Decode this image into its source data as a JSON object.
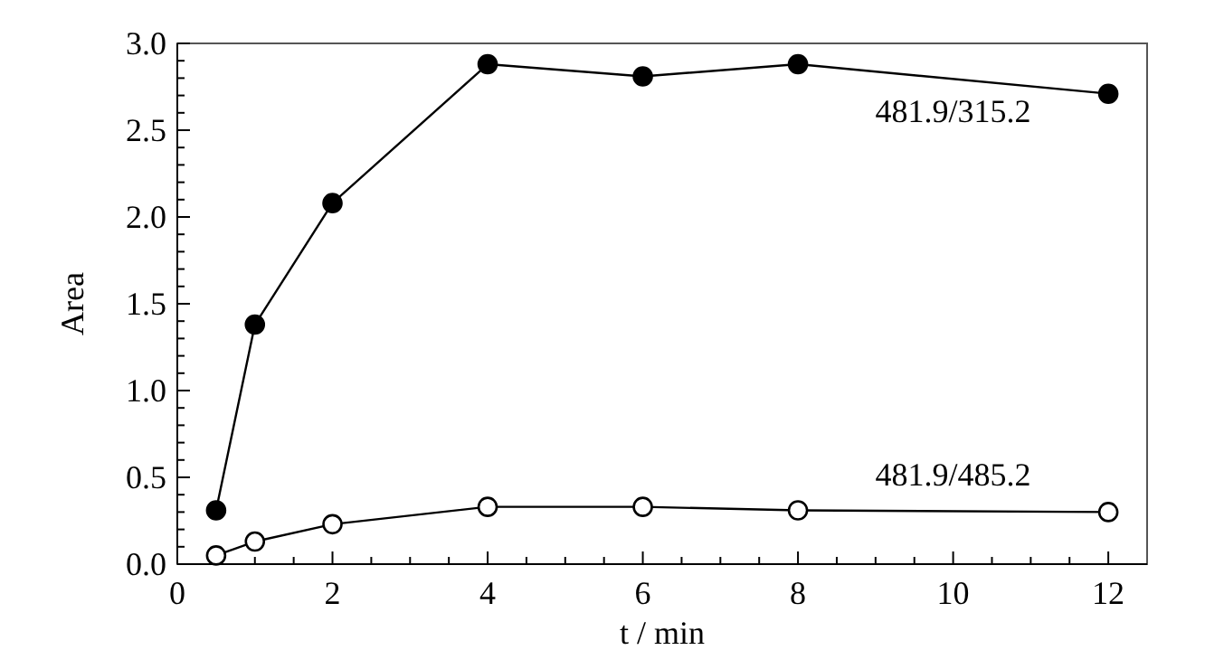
{
  "chart_data": {
    "type": "line",
    "xlabel": "t / min",
    "ylabel": "Area",
    "xlim": [
      0,
      12.5
    ],
    "ylim": [
      0,
      3.0
    ],
    "xticks": [
      0,
      {
        "value": 0.5,
        "label": null
      },
      {
        "value": 1,
        "label": null
      },
      {
        "value": 1.5,
        "label": null
      },
      2,
      {
        "value": 2.5,
        "label": null
      },
      {
        "value": 3,
        "label": null
      },
      {
        "value": 3.5,
        "label": null
      },
      4,
      {
        "value": 4.5,
        "label": null
      },
      {
        "value": 5,
        "label": null
      },
      {
        "value": 5.5,
        "label": null
      },
      6,
      {
        "value": 6.5,
        "label": null
      },
      {
        "value": 7,
        "label": null
      },
      {
        "value": 7.5,
        "label": null
      },
      8,
      {
        "value": 8.5,
        "label": null
      },
      {
        "value": 9,
        "label": null
      },
      {
        "value": 9.5,
        "label": null
      },
      10,
      {
        "value": 10.5,
        "label": null
      },
      {
        "value": 11,
        "label": null
      },
      {
        "value": 11.5,
        "label": null
      },
      12
    ],
    "yticks": [
      {
        "value": 0,
        "label": "0.0"
      },
      {
        "value": 0.1,
        "label": null
      },
      {
        "value": 0.2,
        "label": null
      },
      {
        "value": 0.3,
        "label": null
      },
      {
        "value": 0.4,
        "label": null
      },
      0.5,
      {
        "value": 0.6,
        "label": null
      },
      {
        "value": 0.7,
        "label": null
      },
      {
        "value": 0.8,
        "label": null
      },
      {
        "value": 0.9,
        "label": null
      },
      {
        "value": 1,
        "label": "1.0"
      },
      {
        "value": 1.1,
        "label": null
      },
      {
        "value": 1.2,
        "label": null
      },
      {
        "value": 1.3,
        "label": null
      },
      {
        "value": 1.4,
        "label": null
      },
      1.5,
      {
        "value": 1.6,
        "label": null
      },
      {
        "value": 1.7,
        "label": null
      },
      {
        "value": 1.8,
        "label": null
      },
      {
        "value": 1.9,
        "label": null
      },
      {
        "value": 2,
        "label": "2.0"
      },
      {
        "value": 2.1,
        "label": null
      },
      {
        "value": 2.2,
        "label": null
      },
      {
        "value": 2.3,
        "label": null
      },
      {
        "value": 2.4,
        "label": null
      },
      2.5,
      {
        "value": 2.6,
        "label": null
      },
      {
        "value": 2.7,
        "label": null
      },
      {
        "value": 2.8,
        "label": null
      },
      {
        "value": 2.9,
        "label": null
      },
      {
        "value": 3,
        "label": "3.0"
      }
    ],
    "x": [
      0.5,
      1,
      2,
      4,
      6,
      8,
      12
    ],
    "marker": "circle",
    "grid": false,
    "series": [
      {
        "name": "481.9/315.2",
        "color": "#000000",
        "values": [
          0.31,
          1.38,
          2.08,
          2.88,
          2.81,
          2.88,
          2.71
        ]
      },
      {
        "name": "481.9/485.2",
        "color": "#000000",
        "values": [
          0.05,
          0.13,
          0.23,
          0.33,
          0.33,
          0.31,
          0.3
        ]
      }
    ]
  }
}
